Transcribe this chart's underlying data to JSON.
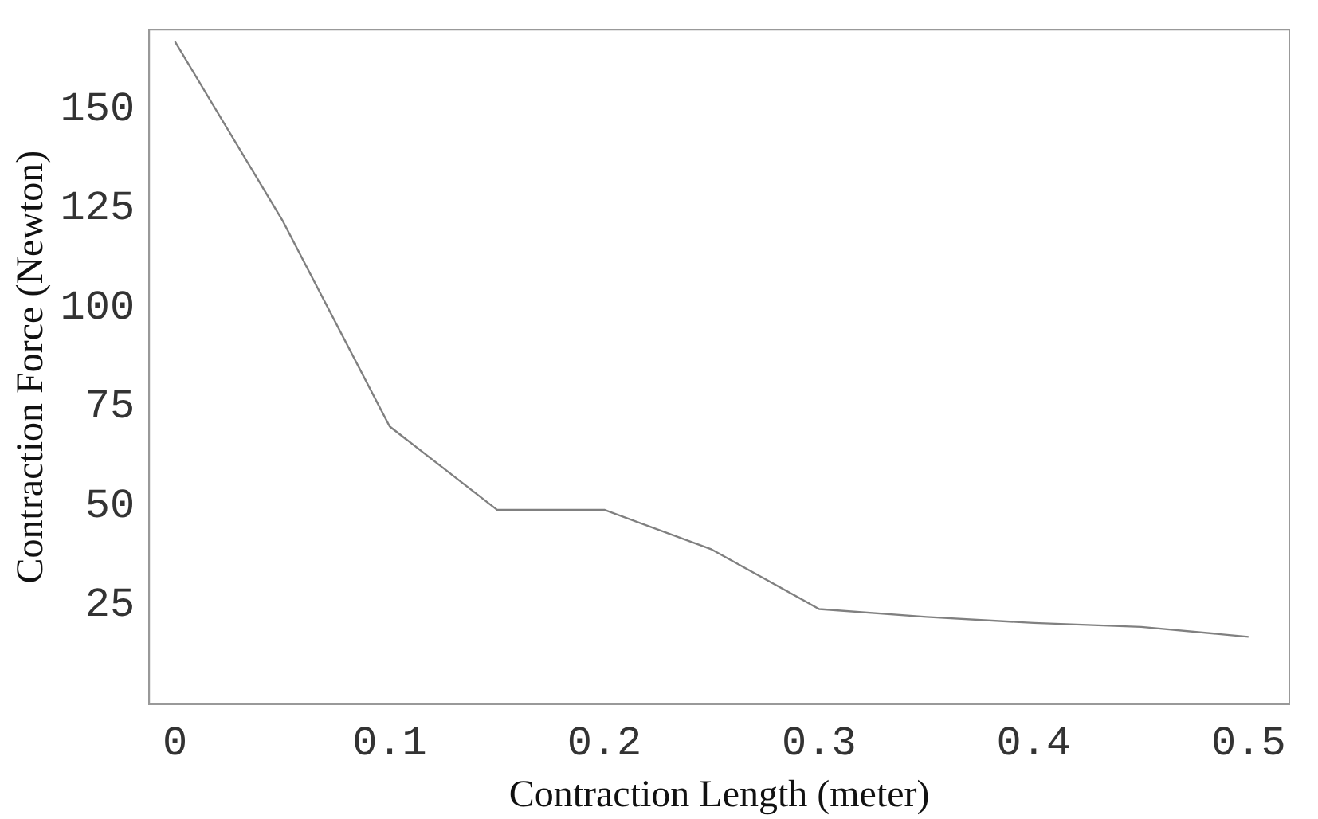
{
  "chart_data": {
    "type": "line",
    "xlabel": "Contraction Length (meter)",
    "ylabel": "Contraction Force (Newton)",
    "x": [
      0,
      0.05,
      0.1,
      0.15,
      0.2,
      0.25,
      0.3,
      0.35,
      0.4,
      0.45,
      0.5
    ],
    "series": [
      {
        "color": "#808080",
        "values": [
          167,
          122,
          70,
          49,
          49,
          39,
          24,
          22,
          20.5,
          19.5,
          17
        ]
      }
    ],
    "xlim": [
      -0.012,
      0.519
    ],
    "ylim": [
      0,
      170
    ],
    "xticks": [
      {
        "value": 0,
        "label": "0"
      },
      0.1,
      0.2,
      0.3,
      0.4,
      0.5
    ],
    "yticks": [
      25,
      50,
      75,
      100,
      125,
      150
    ],
    "grid": false,
    "legend": false,
    "marker": "none",
    "line_style": "solid"
  }
}
